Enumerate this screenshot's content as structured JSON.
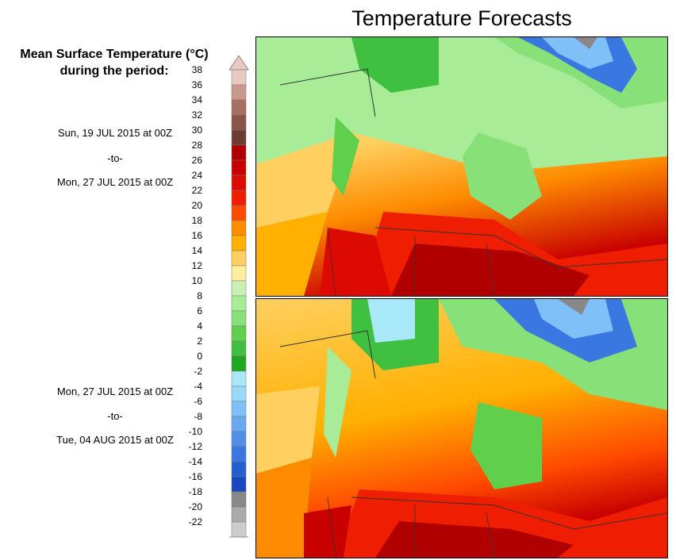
{
  "title": "Temperature Forecasts",
  "legend": {
    "heading_line1": "Mean Surface Temperature (°C)",
    "heading_line2": "during the period:",
    "labels": [
      "38",
      "36",
      "34",
      "32",
      "30",
      "28",
      "26",
      "24",
      "22",
      "20",
      "18",
      "16",
      "14",
      "12",
      "10",
      "8",
      "6",
      "4",
      "2",
      "0",
      "-2",
      "-4",
      "-6",
      "-8",
      "-10",
      "-12",
      "-14",
      "-16",
      "-18",
      "-20",
      "-22"
    ],
    "colors": [
      "#e8c8c0",
      "#c8988c",
      "#a87060",
      "#8c5448",
      "#6c3c30",
      "#b00000",
      "#c80000",
      "#dc0a00",
      "#f01e00",
      "#ff4a00",
      "#ff8c00",
      "#ffb000",
      "#ffd060",
      "#ffee9c",
      "#c8f0b4",
      "#a8ec98",
      "#88e078",
      "#60d04c",
      "#40c040",
      "#20a820",
      "#a8e8f8",
      "#98d8f8",
      "#80c0f8",
      "#68a8f0",
      "#5090e8",
      "#3878e0",
      "#2060d0",
      "#1848c0",
      "#888888",
      "#aaaaaa",
      "#cccccc"
    ]
  },
  "maps": [
    {
      "name": "map-period-1",
      "period_start": "Sun, 19 JUL 2015 at 00Z",
      "separator": "-to-",
      "period_end": "Mon, 27 JUL 2015 at 00Z"
    },
    {
      "name": "map-period-2",
      "period_start": "Mon, 27 JUL 2015 at 00Z",
      "separator": "-to-",
      "period_end": "Tue, 04 AUG 2015 at 00Z"
    }
  ]
}
